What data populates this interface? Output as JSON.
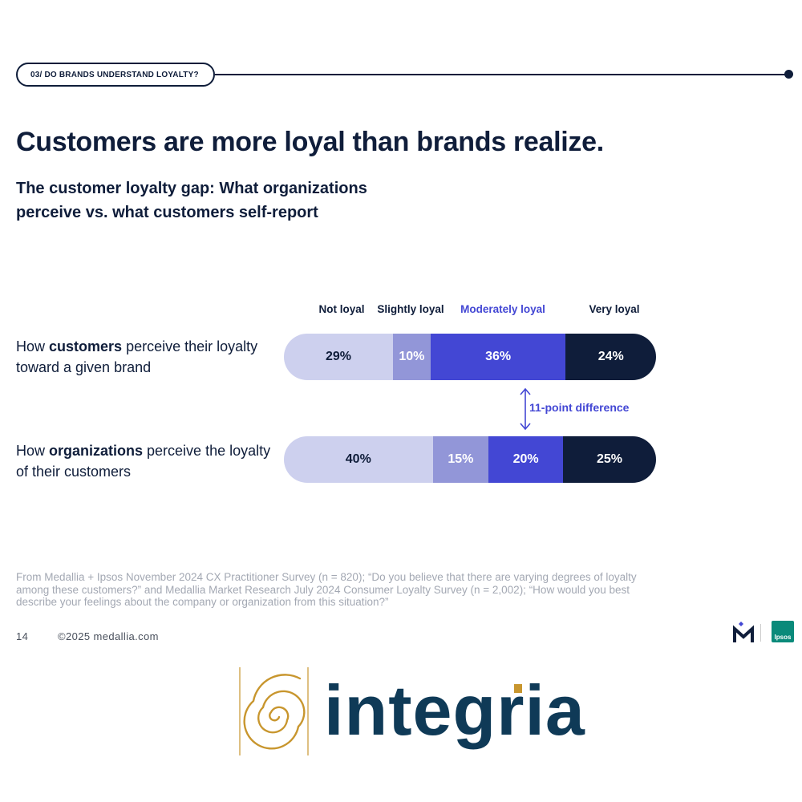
{
  "section": {
    "label": "03/ DO BRANDS UNDERSTAND LOYALTY?"
  },
  "header": {
    "title": "Customers are more loyal than brands realize.",
    "subtitle_line1": "The customer loyalty gap: What organizations",
    "subtitle_line2": "perceive vs. what customers self-report"
  },
  "colors": {
    "not_loyal": "#cdd0ee",
    "slightly_loyal": "#9296d8",
    "moderately_loyal": "#4347d4",
    "very_loyal": "#0f1d3a",
    "legend_highlight": "#4347d4"
  },
  "chart_data": {
    "type": "bar",
    "orientation": "horizontal",
    "stacked": true,
    "categories": [
      "Not loyal",
      "Slightly loyal",
      "Moderately loyal",
      "Very loyal"
    ],
    "series": [
      {
        "name_prefix": "How ",
        "name_bold": "customers",
        "name_suffix": " perceive their loyalty toward a given brand",
        "values": [
          29,
          10,
          36,
          24
        ],
        "value_labels": [
          "29%",
          "10%",
          "36%",
          "24%"
        ]
      },
      {
        "name_prefix": "How ",
        "name_bold": "organizations",
        "name_suffix": " perceive the loyalty of their customers",
        "values": [
          40,
          15,
          20,
          25
        ],
        "value_labels": [
          "40%",
          "15%",
          "20%",
          "25%"
        ]
      }
    ],
    "annotation": "11-point difference"
  },
  "source": {
    "text": "From Medallia + Ipsos November 2024 CX Practitioner Survey (n = 820); “Do you believe that there are varying degrees of loyalty among these customers?” and Medallia Market Research July 2024 Consumer Loyalty Survey (n = 2,002); “How would you best describe your feelings about the company or organization from this situation?”"
  },
  "footer": {
    "page_number": "14",
    "copyright": "©2025 medallia.com"
  },
  "logos": {
    "medallia": "medallia-m-logo",
    "ipsos": "Ipsos",
    "integria": "integria"
  }
}
